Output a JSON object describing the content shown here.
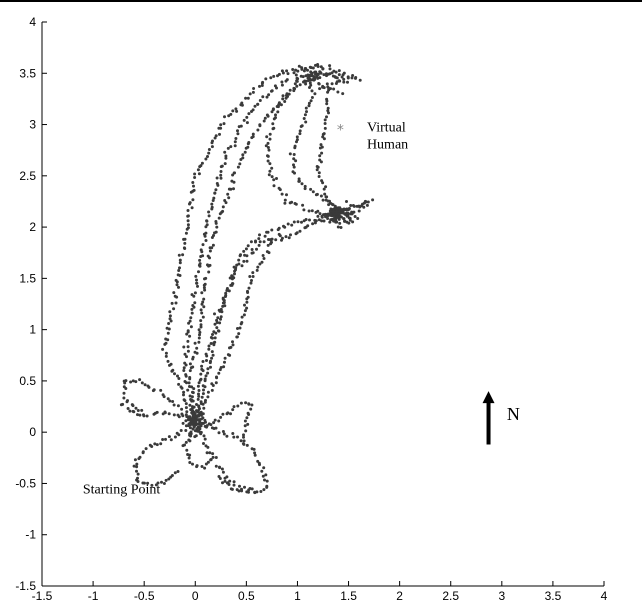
{
  "chart_data": {
    "type": "scatter",
    "title": "",
    "xlabel": "",
    "ylabel": "",
    "xlim": [
      -1.5,
      4
    ],
    "ylim": [
      -1.5,
      4
    ],
    "x_ticks": [
      -1.5,
      -1,
      -0.5,
      0,
      0.5,
      1,
      1.5,
      2,
      2.5,
      3,
      3.5,
      4
    ],
    "y_ticks": [
      -1.5,
      -1,
      -0.5,
      0,
      0.5,
      1,
      1.5,
      2,
      2.5,
      3,
      3.5,
      4
    ],
    "grid": false,
    "colors": {
      "trajectory": "#3a3a3a",
      "virtual_human": "#888888",
      "axes": "#000000"
    },
    "annotations": [
      {
        "text": "Virtual Human",
        "lines": [
          "Virtual",
          "Human"
        ],
        "x": 1.68,
        "y": 2.93
      },
      {
        "text": "Starting Point",
        "lines": [
          "Starting Point"
        ],
        "x": -1.1,
        "y": -0.6
      },
      {
        "text": "N",
        "lines": [
          "N"
        ],
        "x": 3.05,
        "y": 0.12
      }
    ],
    "virtual_human_marker": {
      "x": 1.42,
      "y": 2.95,
      "symbol": "*"
    },
    "north_arrow": {
      "x": 2.87,
      "y_from": -0.12,
      "y_to": 0.4
    },
    "series": [
      {
        "values": [
          [
            0,
            0.1
          ],
          [
            -0.15,
            0.45
          ],
          [
            -0.3,
            0.8
          ],
          [
            -0.2,
            1.3
          ],
          [
            -0.1,
            1.9
          ],
          [
            0,
            2.5
          ],
          [
            0.3,
            3.05
          ],
          [
            0.7,
            3.45
          ],
          [
            1.0,
            3.55
          ],
          [
            1.25,
            3.5
          ],
          [
            1.45,
            3.42
          ]
        ]
      },
      {
        "values": [
          [
            0,
            0.1
          ],
          [
            0.05,
            0.5
          ],
          [
            0.15,
            0.9
          ],
          [
            0.3,
            1.35
          ],
          [
            0.45,
            1.75
          ],
          [
            0.7,
            1.95
          ],
          [
            1.0,
            2.05
          ],
          [
            1.3,
            2.12
          ],
          [
            1.55,
            2.2
          ],
          [
            1.7,
            2.25
          ]
        ]
      },
      {
        "values": [
          [
            0,
            0.1
          ],
          [
            -0.05,
            0.55
          ],
          [
            0.05,
            1.0
          ],
          [
            0.1,
            1.5
          ],
          [
            0.2,
            2.0
          ],
          [
            0.4,
            2.55
          ],
          [
            0.6,
            2.95
          ],
          [
            0.85,
            3.25
          ],
          [
            1.1,
            3.45
          ]
        ]
      },
      {
        "values": [
          [
            0,
            0.1
          ],
          [
            0.25,
            0.6
          ],
          [
            0.45,
            1.05
          ],
          [
            0.55,
            1.5
          ],
          [
            0.75,
            1.85
          ],
          [
            1.0,
            1.95
          ],
          [
            1.3,
            2.1
          ],
          [
            1.45,
            2.15
          ]
        ]
      },
      {
        "values": [
          [
            0,
            0.1
          ],
          [
            -0.1,
            0.6
          ],
          [
            -0.05,
            1.1
          ],
          [
            0.05,
            1.65
          ],
          [
            0.15,
            2.2
          ],
          [
            0.3,
            2.7
          ],
          [
            0.55,
            3.15
          ],
          [
            0.95,
            3.5
          ],
          [
            1.2,
            3.58
          ],
          [
            1.5,
            3.48
          ]
        ]
      },
      {
        "values": [
          [
            1.45,
            2.15
          ],
          [
            1.2,
            2.3
          ],
          [
            1.0,
            2.45
          ],
          [
            0.95,
            2.7
          ],
          [
            1.05,
            3.0
          ],
          [
            1.15,
            3.3
          ],
          [
            1.1,
            3.45
          ]
        ]
      },
      {
        "values": [
          [
            1.5,
            2.1
          ],
          [
            1.3,
            2.25
          ],
          [
            1.2,
            2.55
          ],
          [
            1.25,
            2.85
          ],
          [
            1.3,
            3.2
          ],
          [
            1.3,
            3.4
          ]
        ]
      },
      {
        "values": [
          [
            1.0,
            3.4
          ],
          [
            0.8,
            3.15
          ],
          [
            0.7,
            2.8
          ],
          [
            0.75,
            2.5
          ],
          [
            0.9,
            2.25
          ],
          [
            1.2,
            2.15
          ],
          [
            1.4,
            2.12
          ]
        ]
      },
      {
        "values": [
          [
            0,
            0.1
          ],
          [
            0.15,
            0.7
          ],
          [
            0.25,
            1.2
          ],
          [
            0.4,
            1.6
          ],
          [
            0.6,
            1.8
          ],
          [
            0.85,
            1.95
          ]
        ]
      },
      {
        "values": [
          [
            0,
            0.1
          ],
          [
            -0.3,
            0.2
          ],
          [
            -0.55,
            0.15
          ],
          [
            -0.75,
            0.3
          ]
        ]
      },
      {
        "values": [
          [
            0,
            0.1
          ],
          [
            -0.3,
            0.35
          ],
          [
            -0.55,
            0.5
          ],
          [
            -0.7,
            0.5
          ],
          [
            -0.68,
            0.3
          ],
          [
            -0.5,
            0.2
          ]
        ]
      },
      {
        "values": [
          [
            0,
            0.1
          ],
          [
            -0.2,
            -0.05
          ],
          [
            -0.45,
            -0.15
          ],
          [
            -0.6,
            -0.3
          ],
          [
            -0.55,
            -0.5
          ],
          [
            -0.3,
            -0.5
          ],
          [
            -0.15,
            -0.35
          ]
        ]
      },
      {
        "values": [
          [
            0,
            0.1
          ],
          [
            0.1,
            -0.1
          ],
          [
            0.2,
            -0.3
          ],
          [
            0.3,
            -0.45
          ],
          [
            0.45,
            -0.55
          ],
          [
            0.6,
            -0.55
          ]
        ]
      },
      {
        "values": [
          [
            0,
            0.1
          ],
          [
            0.3,
            0.0
          ],
          [
            0.55,
            -0.15
          ],
          [
            0.65,
            -0.35
          ],
          [
            0.7,
            -0.55
          ],
          [
            0.55,
            -0.6
          ],
          [
            0.35,
            -0.55
          ],
          [
            0.2,
            -0.4
          ]
        ]
      },
      {
        "values": [
          [
            0.1,
            0.05
          ],
          [
            0.4,
            0.25
          ],
          [
            0.55,
            0.28
          ],
          [
            0.5,
            0.1
          ],
          [
            0.45,
            -0.1
          ]
        ]
      },
      {
        "values": [
          [
            0,
            0.1
          ],
          [
            -0.1,
            -0.15
          ],
          [
            -0.05,
            -0.3
          ],
          [
            0.1,
            -0.35
          ],
          [
            0.2,
            -0.2
          ]
        ]
      },
      {
        "values": [
          [
            1.25,
            3.5
          ],
          [
            1.5,
            3.47
          ],
          [
            1.6,
            3.45
          ],
          [
            1.4,
            3.4
          ],
          [
            1.25,
            3.38
          ],
          [
            1.45,
            3.3
          ]
        ]
      },
      {
        "values": [
          [
            1.3,
            2.12
          ],
          [
            1.55,
            2.2
          ],
          [
            1.72,
            2.25
          ],
          [
            1.55,
            2.15
          ],
          [
            1.35,
            2.05
          ],
          [
            1.5,
            2.05
          ]
        ]
      }
    ],
    "clusters": [
      {
        "x": 0,
        "y": 0.1,
        "n": 70,
        "sx": 0.05,
        "sy": 0.06
      },
      {
        "x": 1.4,
        "y": 2.12,
        "n": 80,
        "sx": 0.07,
        "sy": 0.05
      },
      {
        "x": 1.15,
        "y": 3.45,
        "n": 45,
        "sx": 0.06,
        "sy": 0.04
      }
    ]
  }
}
